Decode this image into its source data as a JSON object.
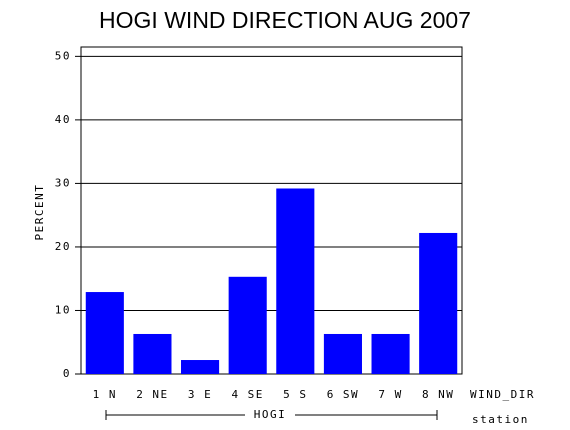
{
  "chart_data": {
    "type": "bar",
    "title": "HOGI WIND DIRECTION AUG 2007",
    "categories": [
      "1 N",
      "2 NE",
      "3 E",
      "4 SE",
      "5 S",
      "6 SW",
      "7 W",
      "8 NW"
    ],
    "values": [
      12.9,
      6.3,
      2.2,
      15.3,
      29.2,
      6.3,
      6.3,
      22.2
    ],
    "color": "#0000ff",
    "y_label": "PERCENT",
    "x_label": "WIND_DIR",
    "group_label": "HOGI",
    "group_axis_label": "station",
    "ylim": [
      0,
      51
    ],
    "yticks": [
      0,
      10,
      20,
      30,
      40,
      50
    ],
    "grid": true
  }
}
